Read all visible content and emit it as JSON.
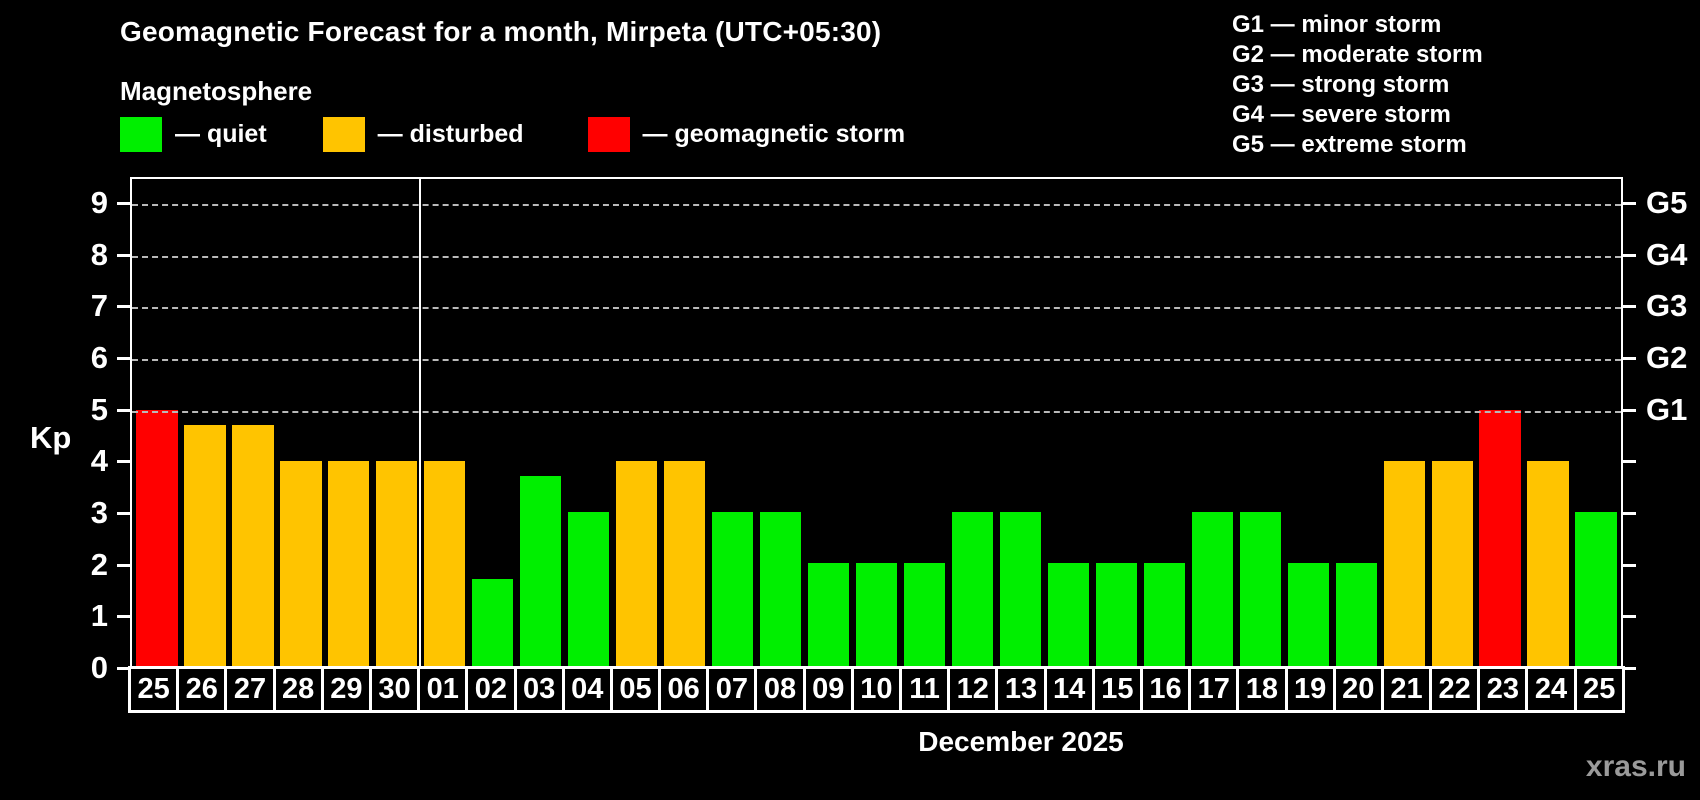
{
  "header": {
    "title": "Geomagnetic Forecast for a month, Mirpeta (UTC+05:30)",
    "subtitle": "Magnetosphere"
  },
  "legend": {
    "items": [
      {
        "label": "— quiet",
        "status": "quiet",
        "color": "#00ef00"
      },
      {
        "label": "— disturbed",
        "status": "disturbed",
        "color": "#ffc400"
      },
      {
        "label": "— geomagnetic storm",
        "status": "storm",
        "color": "#ff0000"
      }
    ]
  },
  "g_legend": {
    "lines": [
      "G1 — minor storm",
      "G2 — moderate storm",
      "G3 — strong storm",
      "G4 — severe storm",
      "G5 — extreme storm"
    ]
  },
  "chart_data": {
    "type": "bar",
    "title": "Geomagnetic Forecast for a month, Mirpeta (UTC+05:30)",
    "xlabel": "December 2025",
    "ylabel": "Kp",
    "ylim": [
      0,
      9.5
    ],
    "yticks": [
      0,
      1,
      2,
      3,
      4,
      5,
      6,
      7,
      8,
      9
    ],
    "gridlines_at": [
      5,
      6,
      7,
      8,
      9
    ],
    "grid": "dashed horizontal at storm levels only",
    "g_levels": [
      {
        "kp": 5,
        "label": "G1"
      },
      {
        "kp": 6,
        "label": "G2"
      },
      {
        "kp": 7,
        "label": "G3"
      },
      {
        "kp": 8,
        "label": "G4"
      },
      {
        "kp": 9,
        "label": "G5"
      }
    ],
    "month_separator_after_index": 5,
    "categories": [
      "25",
      "26",
      "27",
      "28",
      "29",
      "30",
      "01",
      "02",
      "03",
      "04",
      "05",
      "06",
      "07",
      "08",
      "09",
      "10",
      "11",
      "12",
      "13",
      "14",
      "15",
      "16",
      "17",
      "18",
      "19",
      "20",
      "21",
      "22",
      "23",
      "24",
      "25"
    ],
    "values": [
      5,
      4.7,
      4.7,
      4,
      4,
      4,
      4,
      1.7,
      3.7,
      3,
      4,
      4,
      3,
      3,
      2,
      2,
      2,
      3,
      3,
      2,
      2,
      2,
      3,
      3,
      2,
      2,
      4,
      4,
      5,
      4,
      3
    ],
    "statuses": [
      "storm",
      "disturbed",
      "disturbed",
      "disturbed",
      "disturbed",
      "disturbed",
      "disturbed",
      "quiet",
      "quiet",
      "quiet",
      "disturbed",
      "disturbed",
      "quiet",
      "quiet",
      "quiet",
      "quiet",
      "quiet",
      "quiet",
      "quiet",
      "quiet",
      "quiet",
      "quiet",
      "quiet",
      "quiet",
      "quiet",
      "quiet",
      "disturbed",
      "disturbed",
      "storm",
      "disturbed",
      "quiet"
    ],
    "colors": {
      "quiet": "#00ef00",
      "disturbed": "#ffc400",
      "storm": "#ff0000"
    }
  },
  "footer": {
    "month_label": "December 2025",
    "watermark": "xras.ru"
  }
}
